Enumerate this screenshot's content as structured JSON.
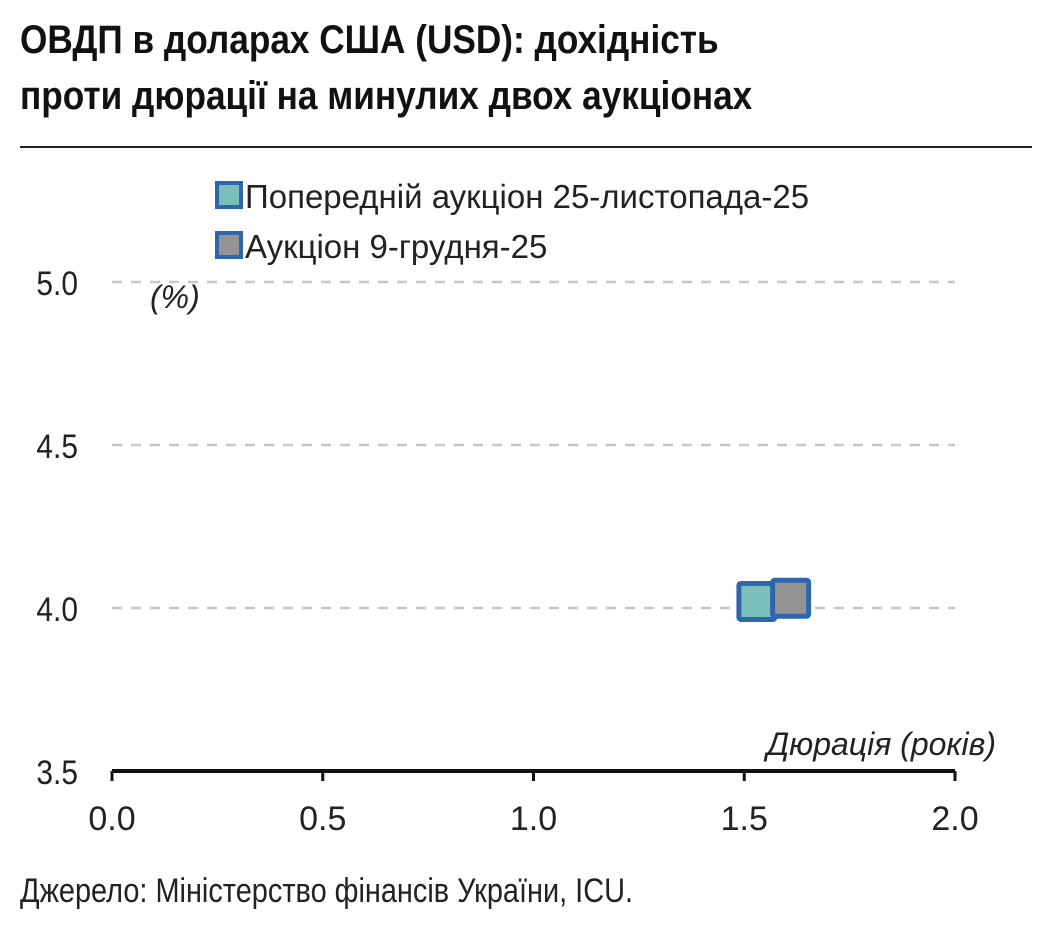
{
  "title_line1": "ОВДП в доларах США (USD): дохідність",
  "title_line2": "проти дюрації на минулих двох аукціонах",
  "source": "Джерело: Міністерство фінансів України, ICU.",
  "chart_data": {
    "type": "scatter",
    "xlabel": "Дюрація (років)",
    "ylabel": "(%)",
    "xlim": [
      0,
      2
    ],
    "ylim": [
      3.5,
      5
    ],
    "xticks": [
      "0.0",
      "0.5",
      "1.0",
      "1.5",
      "2.0"
    ],
    "yticks": [
      "3.5",
      "4.0",
      "4.5",
      "5.0"
    ],
    "grid": true,
    "legend": "top-left",
    "series": [
      {
        "name": "Попередній аукціон 25-листопада-25",
        "color": "#7abfb9",
        "border": "#2e65ad",
        "x": [
          1.53
        ],
        "y": [
          4.02
        ]
      },
      {
        "name": "Аукціон 9-грудня-25",
        "color": "#949494",
        "border": "#2e65ad",
        "x": [
          1.61
        ],
        "y": [
          4.03
        ]
      }
    ]
  }
}
